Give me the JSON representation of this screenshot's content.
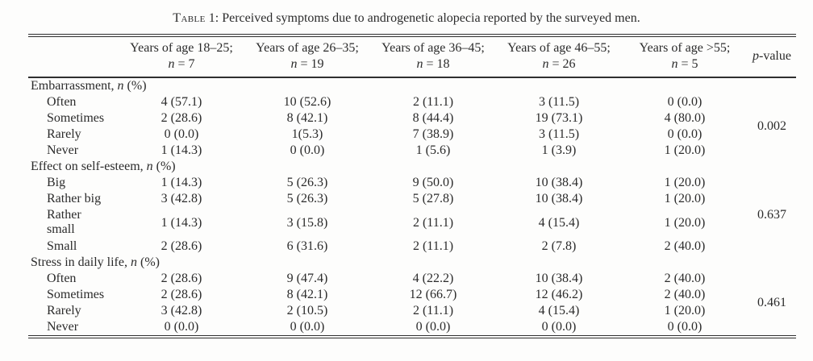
{
  "title": {
    "label": "Table",
    "number": "1:",
    "text": "Perceived symptoms due to androgenetic alopecia reported by the surveyed men."
  },
  "colors": {
    "text": "#2b2b2b",
    "rule": "#2f2f2f",
    "background": "#fdfdfc"
  },
  "table": {
    "columns": [
      {
        "line1": "Years of age 18–25;",
        "n_italic": "n",
        "n_rest": " = 7"
      },
      {
        "line1": "Years of age 26–35;",
        "n_italic": "n",
        "n_rest": " = 19"
      },
      {
        "line1": "Years of age 36–45;",
        "n_italic": "n",
        "n_rest": " = 18"
      },
      {
        "line1": "Years of age 46–55;",
        "n_italic": "n",
        "n_rest": " = 26"
      },
      {
        "line1": "Years of age >55;",
        "n_italic": "n",
        "n_rest": " = 5"
      }
    ],
    "p_header": {
      "italic": "p",
      "rest": "-value"
    },
    "sections": [
      {
        "label_pre": "Embarrassment, ",
        "label_it": "n",
        "label_post": " (%)",
        "p_value": "0.002",
        "rows": [
          {
            "label": "Often",
            "values": [
              "4 (57.1)",
              "10 (52.6)",
              "2 (11.1)",
              "3 (11.5)",
              "0 (0.0)"
            ]
          },
          {
            "label": "Sometimes",
            "values": [
              "2 (28.6)",
              "8 (42.1)",
              "8 (44.4)",
              "19 (73.1)",
              "4 (80.0)"
            ]
          },
          {
            "label": "Rarely",
            "values": [
              "0 (0.0)",
              "1(5.3)",
              "7 (38.9)",
              "3 (11.5)",
              "0 (0.0)"
            ]
          },
          {
            "label": "Never",
            "values": [
              "1 (14.3)",
              "0 (0.0)",
              "1 (5.6)",
              "1 (3.9)",
              "1 (20.0)"
            ]
          }
        ]
      },
      {
        "label_pre": "Effect on self-esteem, ",
        "label_it": "n",
        "label_post": " (%)",
        "p_value": "0.637",
        "rows": [
          {
            "label": "Big",
            "values": [
              "1 (14.3)",
              "5 (26.3)",
              "9 (50.0)",
              "10 (38.4)",
              "1 (20.0)"
            ]
          },
          {
            "label": "Rather big",
            "values": [
              "3 (42.8)",
              "5 (26.3)",
              "5 (27.8)",
              "10 (38.4)",
              "1 (20.0)"
            ]
          },
          {
            "label": "Rather small",
            "values": [
              "1 (14.3)",
              "3 (15.8)",
              "2 (11.1)",
              "4 (15.4)",
              "1 (20.0)"
            ]
          },
          {
            "label": "Small",
            "values": [
              "2 (28.6)",
              "6 (31.6)",
              "2 (11.1)",
              "2 (7.8)",
              "2 (40.0)"
            ]
          }
        ]
      },
      {
        "label_pre": "Stress in daily life, ",
        "label_it": "n",
        "label_post": " (%)",
        "p_value": "0.461",
        "rows": [
          {
            "label": "Often",
            "values": [
              "2 (28.6)",
              "9 (47.4)",
              "4 (22.2)",
              "10 (38.4)",
              "2 (40.0)"
            ]
          },
          {
            "label": "Sometimes",
            "values": [
              "2 (28.6)",
              "8 (42.1)",
              "12 (66.7)",
              "12 (46.2)",
              "2 (40.0)"
            ]
          },
          {
            "label": "Rarely",
            "values": [
              "3 (42.8)",
              "2 (10.5)",
              "2 (11.1)",
              "4 (15.4)",
              "1 (20.0)"
            ]
          },
          {
            "label": "Never",
            "values": [
              "0 (0.0)",
              "0 (0.0)",
              "0 (0.0)",
              "0 (0.0)",
              "0 (0.0)"
            ]
          }
        ]
      }
    ]
  }
}
